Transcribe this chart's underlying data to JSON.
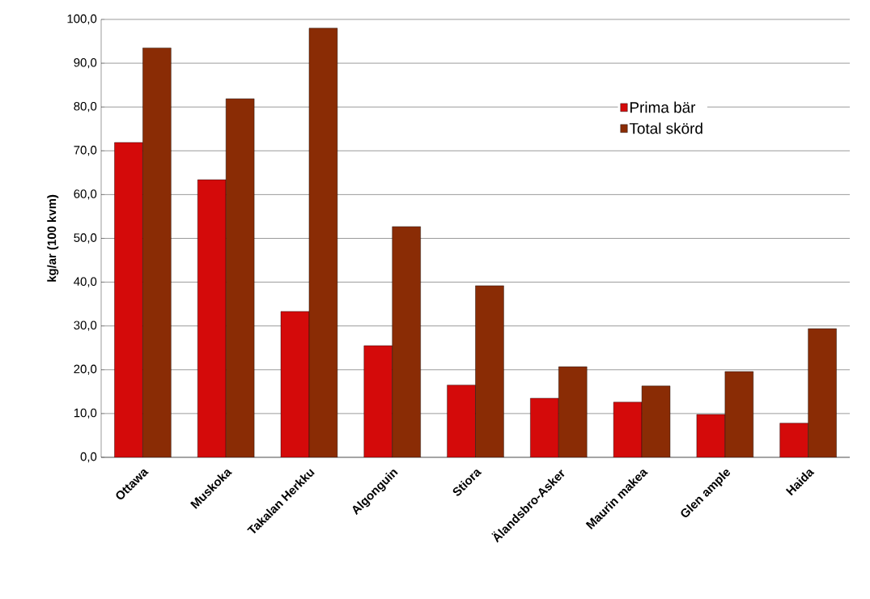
{
  "chart_data": {
    "type": "bar",
    "ylabel": "kg/ar (100 kvm)",
    "categories": [
      "Ottawa",
      "Muskoka",
      "Takalan Herkku",
      "Algonguin",
      "Stiora",
      "Älandsbro-Asker",
      "Maurin makea",
      "Glen ample",
      "Haida"
    ],
    "series": [
      {
        "name": "Prima bär",
        "color": "#d40a0a",
        "values": [
          71.9,
          63.4,
          33.3,
          25.5,
          16.5,
          13.5,
          12.6,
          9.8,
          7.8
        ]
      },
      {
        "name": "Total skörd",
        "color": "#8a2c05",
        "values": [
          93.5,
          81.9,
          98.0,
          52.7,
          39.2,
          20.7,
          16.3,
          19.6,
          29.4
        ]
      }
    ],
    "ylim": [
      0,
      100
    ],
    "yticks": [
      {
        "value": 0,
        "label": "0,0"
      },
      {
        "value": 10,
        "label": "10,0"
      },
      {
        "value": 20,
        "label": "20,0"
      },
      {
        "value": 30,
        "label": "30,0"
      },
      {
        "value": 40,
        "label": "40,0"
      },
      {
        "value": 50,
        "label": "50,0"
      },
      {
        "value": 60,
        "label": "60,0"
      },
      {
        "value": 70,
        "label": "70,0"
      },
      {
        "value": 80,
        "label": "80,0"
      },
      {
        "value": 90,
        "label": "90,0"
      },
      {
        "value": 100,
        "label": "100,0"
      }
    ],
    "grid": "y",
    "legend": "top right"
  }
}
